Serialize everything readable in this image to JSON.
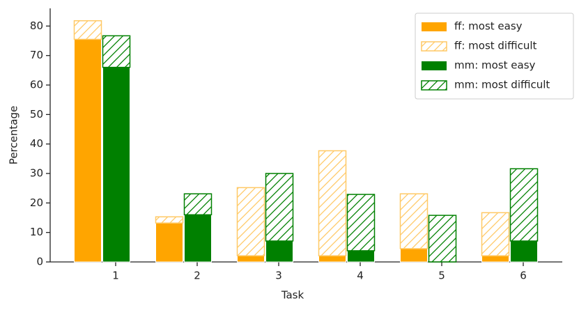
{
  "chart_data": {
    "type": "bar",
    "x_label": "Task",
    "y_label": "Percentage",
    "categories": [
      "1",
      "2",
      "3",
      "4",
      "5",
      "6"
    ],
    "series": [
      {
        "name": "ff: most easy",
        "color": "#ffa500",
        "hatch": false,
        "values": [
          75.5,
          13.2,
          2.1,
          2.1,
          4.5,
          2.1
        ]
      },
      {
        "name": "ff: most difficult",
        "color": "#ffc966",
        "hatch": true,
        "values": [
          6.3,
          2.1,
          23.1,
          35.6,
          18.6,
          14.6
        ]
      },
      {
        "name": "mm: most easy",
        "color": "#008000",
        "hatch": false,
        "values": [
          66,
          16,
          7.1,
          3.8,
          0,
          7.1
        ]
      },
      {
        "name": "mm: most difficult",
        "color": "#008000",
        "hatch": true,
        "values": [
          10.7,
          7.1,
          22.9,
          19.1,
          15.8,
          24.5
        ]
      }
    ],
    "ylim": [
      0,
      86
    ],
    "yticks": [
      0,
      10,
      20,
      30,
      40,
      50,
      60,
      70,
      80
    ],
    "legend": "upper right"
  }
}
